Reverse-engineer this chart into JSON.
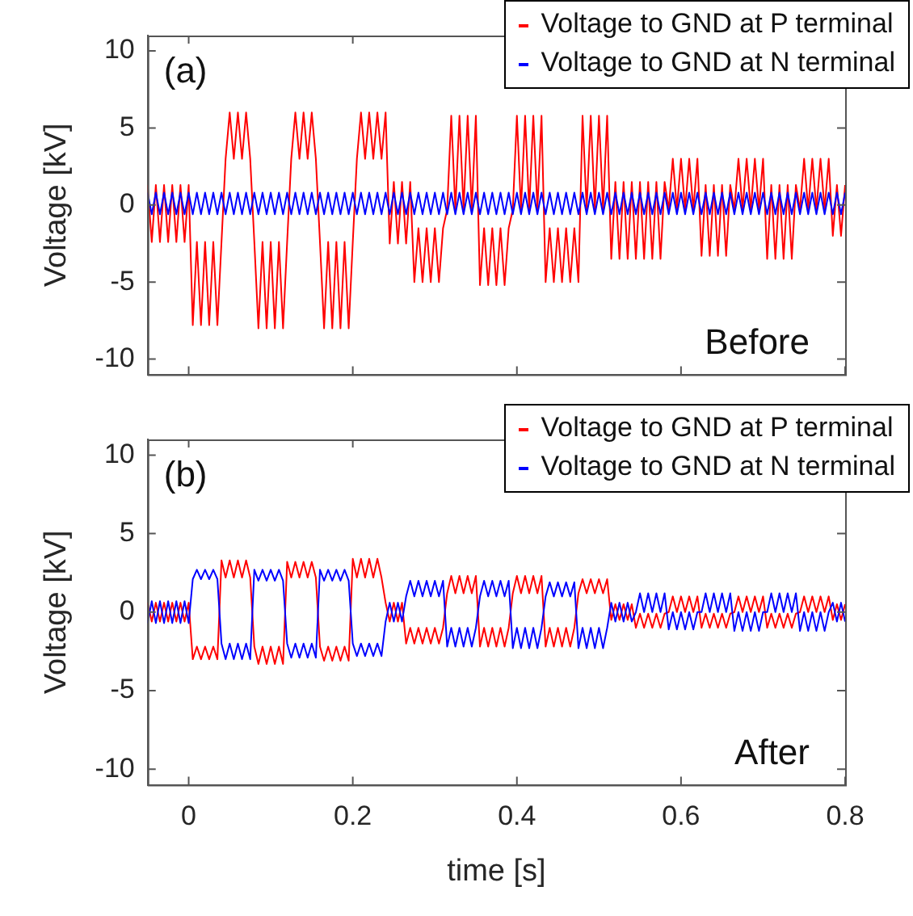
{
  "chart_data": [
    {
      "type": "line",
      "ylabel": "Voltage [kV]",
      "annotations": [
        "(a)",
        "Before"
      ],
      "legend": "top right",
      "tick_labels": "y",
      "xlim": [
        -0.05,
        0.8
      ],
      "xticks": [
        0,
        0.2,
        0.4,
        0.6,
        0.8
      ],
      "ylim": [
        -11,
        11
      ],
      "yticks": [
        -10,
        -5,
        0,
        5,
        10
      ],
      "x": [
        -0.05,
        -0.045,
        -0.04,
        -0.035,
        -0.03,
        -0.025,
        -0.02,
        -0.015,
        -0.01,
        -0.005,
        0,
        0.005,
        0.01,
        0.015,
        0.02,
        0.025,
        0.03,
        0.035,
        0.04,
        0.045,
        0.05,
        0.055,
        0.06,
        0.065,
        0.07,
        0.075,
        0.08,
        0.085,
        0.09,
        0.095,
        0.1,
        0.105,
        0.11,
        0.115,
        0.12,
        0.125,
        0.13,
        0.135,
        0.14,
        0.145,
        0.15,
        0.155,
        0.16,
        0.165,
        0.17,
        0.175,
        0.18,
        0.185,
        0.19,
        0.195,
        0.2,
        0.205,
        0.21,
        0.215,
        0.22,
        0.225,
        0.23,
        0.235,
        0.24,
        0.245,
        0.25,
        0.255,
        0.26,
        0.265,
        0.27,
        0.275,
        0.28,
        0.285,
        0.29,
        0.295,
        0.3,
        0.305,
        0.31,
        0.315,
        0.32,
        0.325,
        0.33,
        0.335,
        0.34,
        0.345,
        0.35,
        0.355,
        0.36,
        0.365,
        0.37,
        0.375,
        0.38,
        0.385,
        0.39,
        0.395,
        0.4,
        0.405,
        0.41,
        0.415,
        0.42,
        0.425,
        0.43,
        0.435,
        0.44,
        0.445,
        0.45,
        0.455,
        0.46,
        0.465,
        0.47,
        0.475,
        0.48,
        0.485,
        0.49,
        0.495,
        0.5,
        0.505,
        0.51,
        0.515,
        0.52,
        0.525,
        0.53,
        0.535,
        0.54,
        0.545,
        0.55,
        0.555,
        0.56,
        0.565,
        0.57,
        0.575,
        0.58,
        0.585,
        0.59,
        0.595,
        0.6,
        0.605,
        0.61,
        0.615,
        0.62,
        0.625,
        0.63,
        0.635,
        0.64,
        0.645,
        0.65,
        0.655,
        0.66,
        0.665,
        0.67,
        0.675,
        0.68,
        0.685,
        0.69,
        0.695,
        0.7,
        0.705,
        0.71,
        0.715,
        0.72,
        0.725,
        0.73,
        0.735,
        0.74,
        0.745,
        0.75,
        0.755,
        0.76,
        0.765,
        0.77,
        0.775,
        0.78,
        0.785,
        0.79,
        0.795,
        0.8
      ],
      "series": [
        {
          "name": "Voltage to GND at P terminal",
          "color": "#ff0000",
          "values": [
            1.3,
            -2.4,
            1.3,
            -2.4,
            1.3,
            -2.4,
            1.3,
            -2.4,
            1.3,
            -2.4,
            1.3,
            -7.8,
            -2.4,
            -7.8,
            -2.4,
            -7.8,
            -2.4,
            -7.8,
            -2.4,
            3,
            6,
            3,
            6,
            3,
            6,
            3,
            -2.4,
            -8,
            -2.4,
            -8,
            -2.4,
            -8,
            -2.4,
            -8,
            -2.4,
            3,
            6,
            3,
            6,
            3,
            6,
            3,
            -2.4,
            -8,
            -2.4,
            -8,
            -2.4,
            -8,
            -2.4,
            -8,
            -2.4,
            3,
            6,
            3,
            6,
            3,
            6,
            3,
            6,
            -2.5,
            1.5,
            -2.5,
            1.5,
            -2.5,
            1.5,
            -5,
            -1.5,
            -5,
            -1.5,
            -5,
            -1.5,
            -5,
            -1.5,
            -0.3,
            5.8,
            -0.3,
            5.8,
            -0.3,
            5.8,
            -0.3,
            5.8,
            -5.2,
            -1.5,
            -5.2,
            -1.5,
            -5.2,
            -1.5,
            -5.2,
            -1.5,
            -0.3,
            5.8,
            -0.3,
            5.8,
            -0.3,
            5.8,
            -0.3,
            5.8,
            -5,
            -1.5,
            -5,
            -1.5,
            -5,
            -1.5,
            -5,
            -1.5,
            -5,
            5.8,
            -0.3,
            5.8,
            -0.3,
            5.8,
            -0.3,
            5.8,
            -3.5,
            1.5,
            -3.5,
            1.5,
            -3.5,
            1.5,
            -3.5,
            1.5,
            -3.5,
            1.5,
            -3.5,
            1.5,
            -3.5,
            1.5,
            -0.3,
            3,
            -0.3,
            3,
            -0.3,
            3,
            -0.3,
            3,
            -3.3,
            1.3,
            -3.3,
            1.3,
            -3.3,
            1.3,
            -3.3,
            1.3,
            -0.3,
            3,
            -0.3,
            3,
            -0.3,
            3,
            -0.3,
            3,
            -3.5,
            1.3,
            -3.5,
            1.3,
            -3.5,
            1.3,
            -3.5,
            1.3,
            -0.3,
            3,
            -0.3,
            3,
            -0.3,
            3,
            -0.3,
            3,
            -2,
            1.3,
            -2,
            1.3
          ]
        },
        {
          "name": "Voltage to GND at N terminal",
          "color": "#0000ff",
          "values": [
            0.8,
            -0.6,
            0.8,
            -0.6,
            0.8,
            -0.6,
            0.8,
            -0.6,
            0.8,
            -0.6,
            0.8,
            -0.6,
            0.8,
            -0.6,
            0.8,
            -0.6,
            0.8,
            -0.6,
            0.8,
            -0.6,
            0.8,
            -0.6,
            0.8,
            -0.6,
            0.8,
            -0.6,
            0.8,
            -0.6,
            0.8,
            -0.6,
            0.8,
            -0.6,
            0.8,
            -0.6,
            0.8,
            -0.6,
            0.8,
            -0.6,
            0.8,
            -0.6,
            0.8,
            -0.6,
            0.8,
            -0.6,
            0.8,
            -0.6,
            0.8,
            -0.6,
            0.8,
            -0.6,
            0.8,
            -0.6,
            0.8,
            -0.6,
            0.8,
            -0.6,
            0.8,
            -0.6,
            0.8,
            -0.6,
            0.8,
            -0.6,
            0.8,
            -0.6,
            0.8,
            -0.6,
            0.8,
            -0.6,
            0.8,
            -0.6,
            0.8,
            -0.6,
            0.8,
            -0.6,
            0.8,
            -0.6,
            0.8,
            -0.6,
            0.8,
            -0.6,
            0.8,
            -0.6,
            0.8,
            -0.6,
            0.8,
            -0.6,
            0.8,
            -0.6,
            0.8,
            -0.6,
            0.8,
            -0.6,
            0.8,
            -0.6,
            0.8,
            -0.6,
            0.8,
            -0.6,
            0.8,
            -0.6,
            0.8,
            -0.6,
            0.8,
            -0.6,
            0.8,
            -0.6,
            0.8,
            -0.6,
            0.8,
            -0.6,
            0.8,
            -0.6,
            0.8,
            -0.6,
            0.8,
            -0.6,
            0.8,
            -0.6,
            0.8,
            -0.6,
            0.8,
            -0.6,
            0.8,
            -0.6,
            0.8,
            -0.6,
            0.8,
            -0.6,
            0.8,
            -0.6,
            0.8,
            -0.6,
            0.8,
            -0.6,
            0.8,
            -0.6,
            0.8,
            -0.6,
            0.8,
            -0.6,
            0.8,
            -0.6,
            0.8,
            -0.6,
            0.8,
            -0.6,
            0.8,
            -0.6,
            0.8,
            -0.6,
            0.8,
            -0.6,
            0.8,
            -0.6,
            0.8,
            -0.6,
            0.8,
            -0.6,
            0.8,
            -0.6,
            0.8,
            -0.6,
            0.8,
            -0.6,
            0.8,
            -0.6,
            0.8,
            -0.6,
            0.8,
            -0.6,
            0.8
          ]
        }
      ]
    },
    {
      "type": "line",
      "xlabel": "time [s]",
      "ylabel": "Voltage [kV]",
      "annotations": [
        "(b)",
        "After"
      ],
      "legend": "top right",
      "xlim": [
        -0.05,
        0.8
      ],
      "xticks": [
        0,
        0.2,
        0.4,
        0.6,
        0.8
      ],
      "ylim": [
        -11,
        11
      ],
      "yticks": [
        -10,
        -5,
        0,
        5,
        10
      ],
      "x": [
        -0.05,
        -0.045,
        -0.04,
        -0.035,
        -0.03,
        -0.025,
        -0.02,
        -0.015,
        -0.01,
        -0.005,
        0,
        0.005,
        0.01,
        0.015,
        0.02,
        0.025,
        0.03,
        0.035,
        0.04,
        0.045,
        0.05,
        0.055,
        0.06,
        0.065,
        0.07,
        0.075,
        0.08,
        0.085,
        0.09,
        0.095,
        0.1,
        0.105,
        0.11,
        0.115,
        0.12,
        0.125,
        0.13,
        0.135,
        0.14,
        0.145,
        0.15,
        0.155,
        0.16,
        0.165,
        0.17,
        0.175,
        0.18,
        0.185,
        0.19,
        0.195,
        0.2,
        0.205,
        0.21,
        0.215,
        0.22,
        0.225,
        0.23,
        0.235,
        0.24,
        0.245,
        0.25,
        0.255,
        0.26,
        0.265,
        0.27,
        0.275,
        0.28,
        0.285,
        0.29,
        0.295,
        0.3,
        0.305,
        0.31,
        0.315,
        0.32,
        0.325,
        0.33,
        0.335,
        0.34,
        0.345,
        0.35,
        0.355,
        0.36,
        0.365,
        0.37,
        0.375,
        0.38,
        0.385,
        0.39,
        0.395,
        0.4,
        0.405,
        0.41,
        0.415,
        0.42,
        0.425,
        0.43,
        0.435,
        0.44,
        0.445,
        0.45,
        0.455,
        0.46,
        0.465,
        0.47,
        0.475,
        0.48,
        0.485,
        0.49,
        0.495,
        0.5,
        0.505,
        0.51,
        0.515,
        0.52,
        0.525,
        0.53,
        0.535,
        0.54,
        0.545,
        0.55,
        0.555,
        0.56,
        0.565,
        0.57,
        0.575,
        0.58,
        0.585,
        0.59,
        0.595,
        0.6,
        0.605,
        0.61,
        0.615,
        0.62,
        0.625,
        0.63,
        0.635,
        0.64,
        0.645,
        0.65,
        0.655,
        0.66,
        0.665,
        0.67,
        0.675,
        0.68,
        0.685,
        0.69,
        0.695,
        0.7,
        0.705,
        0.71,
        0.715,
        0.72,
        0.725,
        0.73,
        0.735,
        0.74,
        0.745,
        0.75,
        0.755,
        0.76,
        0.765,
        0.77,
        0.775,
        0.78,
        0.785,
        0.79,
        0.795,
        0.8
      ],
      "series": [
        {
          "name": "Voltage to GND at P terminal",
          "color": "#ff0000",
          "values": [
            0.6,
            -0.6,
            0.6,
            -0.6,
            0.6,
            -0.6,
            0.6,
            -0.6,
            0.6,
            -0.6,
            0.6,
            -3,
            -2.2,
            -3,
            -2.2,
            -3,
            -2.2,
            -3,
            3.3,
            2.2,
            3.3,
            2.2,
            3.3,
            2.2,
            3.3,
            2.2,
            -2.2,
            -3.3,
            -2.2,
            -3.3,
            -2.2,
            -3.3,
            -2.2,
            -3.3,
            3.2,
            2.2,
            3.2,
            2.2,
            3.2,
            2.2,
            3.2,
            2.2,
            -2.2,
            -3.1,
            -2.2,
            -3.1,
            -2.2,
            -3.1,
            -2.2,
            -3.1,
            3.4,
            2.2,
            3.4,
            2.2,
            3.4,
            2.2,
            3.4,
            2.2,
            0.6,
            -0.6,
            0.6,
            -0.6,
            0.6,
            -2,
            -1,
            -2,
            -1,
            -2,
            -1,
            -2,
            -1,
            -2,
            -1,
            1.2,
            2.3,
            1.2,
            2.3,
            1.2,
            2.3,
            1.2,
            2.3,
            -2.2,
            -1,
            -2.2,
            -1,
            -2.2,
            -1,
            -2.2,
            -1,
            1.2,
            2.3,
            1.2,
            2.3,
            1.2,
            2.3,
            1.2,
            2.3,
            -2.2,
            -1,
            -2.2,
            -1,
            -2.2,
            -1,
            -2.2,
            -1,
            1.2,
            2.1,
            1.2,
            2.1,
            1.2,
            2.1,
            1.2,
            2.1,
            -0.5,
            0.5,
            -0.5,
            0.5,
            -0.5,
            0.5,
            -1,
            -0.1,
            -1,
            -0.1,
            -1,
            -0.1,
            -1,
            -0.1,
            0,
            1,
            0,
            1,
            0,
            1,
            0,
            1,
            -1,
            -0.1,
            -1,
            -0.1,
            -1,
            -0.1,
            -1,
            -0.1,
            0,
            1,
            0,
            1,
            0,
            1,
            0,
            1,
            -1,
            -0.1,
            -1,
            -0.1,
            -1,
            -0.1,
            -1,
            -0.1,
            0,
            1,
            0,
            1,
            0,
            1,
            0,
            1,
            -0.5,
            0.5,
            -0.5,
            0.5
          ]
        },
        {
          "name": "Voltage to GND at N terminal",
          "color": "#0000ff",
          "values": [
            -0.7,
            0.7,
            -0.7,
            0.7,
            -0.7,
            0.7,
            -0.7,
            0.7,
            -0.7,
            0.7,
            -0.7,
            2.1,
            2.7,
            2.1,
            2.7,
            2.1,
            2.7,
            2.1,
            -2,
            -3,
            -2,
            -3,
            -2,
            -3,
            -2,
            -3,
            2.7,
            2,
            2.7,
            2,
            2.7,
            2,
            2.7,
            2,
            -2,
            -2.9,
            -2,
            -2.9,
            -2,
            -2.9,
            -2,
            -2.9,
            2.7,
            2,
            2.7,
            2,
            2.7,
            2,
            2.7,
            2,
            -2,
            -2.8,
            -2,
            -2.8,
            -2,
            -2.8,
            -2,
            -2.8,
            -0.6,
            0.6,
            -0.6,
            0.6,
            -0.6,
            1,
            2,
            1,
            2,
            1,
            2,
            1,
            2,
            1,
            2,
            -2.2,
            -1,
            -2.2,
            -1,
            -2.2,
            -1,
            -2.2,
            -1,
            1,
            2,
            1,
            2,
            1,
            2,
            1,
            2,
            -2.3,
            -1,
            -2.3,
            -1,
            -2.3,
            -1,
            -2.3,
            -1,
            1,
            1.9,
            1,
            1.9,
            1,
            1.9,
            1,
            1.9,
            -2.3,
            -1,
            -2.3,
            -1,
            -2.3,
            -1,
            -2.3,
            -1,
            0.6,
            -0.6,
            0.6,
            -0.6,
            0.6,
            -0.6,
            0,
            1.2,
            0,
            1.2,
            0,
            1.2,
            0,
            1.2,
            -1.1,
            0,
            -1.1,
            0,
            -1.1,
            0,
            -1.1,
            0,
            0,
            1.2,
            0,
            1.2,
            0,
            1.2,
            0,
            1.2,
            -1.2,
            0,
            -1.2,
            0,
            -1.2,
            0,
            -1.2,
            0,
            0,
            1.2,
            0,
            1.2,
            0,
            1.2,
            0,
            1.2,
            -1.2,
            0,
            -1.2,
            0,
            -1.2,
            0,
            -1.2,
            0,
            0.6,
            -0.6,
            0.6,
            -0.6
          ]
        }
      ]
    }
  ]
}
